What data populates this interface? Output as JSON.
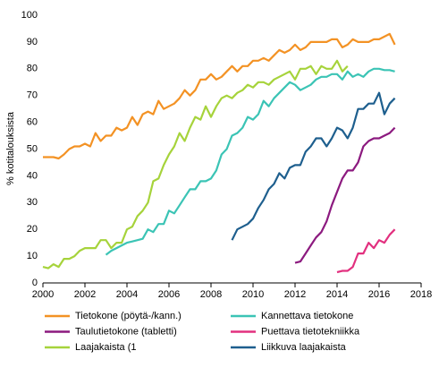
{
  "chart_data": {
    "type": "line",
    "x": [
      2000,
      2000.25,
      2000.5,
      2000.75,
      2001,
      2001.25,
      2001.5,
      2001.75,
      2002,
      2002.25,
      2002.5,
      2002.75,
      2003,
      2003.25,
      2003.5,
      2003.75,
      2004,
      2004.25,
      2004.5,
      2004.75,
      2005,
      2005.25,
      2005.5,
      2005.75,
      2006,
      2006.25,
      2006.5,
      2006.75,
      2007,
      2007.25,
      2007.5,
      2007.75,
      2008,
      2008.25,
      2008.5,
      2008.75,
      2009,
      2009.25,
      2009.5,
      2009.75,
      2010,
      2010.25,
      2010.5,
      2010.75,
      2011,
      2011.25,
      2011.5,
      2011.75,
      2012,
      2012.25,
      2012.5,
      2012.75,
      2013,
      2013.25,
      2013.5,
      2013.75,
      2014,
      2014.25,
      2014.5,
      2014.75,
      2015,
      2015.25,
      2015.5,
      2015.75,
      2016,
      2016.25,
      2016.5,
      2016.75
    ],
    "series": [
      {
        "name": "Tietokone (pöytä-/kann.)",
        "color": "#f39224",
        "values": [
          47,
          47,
          47,
          46.5,
          48,
          50,
          51,
          51,
          52,
          51,
          56,
          53,
          55,
          55,
          58,
          57,
          58,
          62,
          59,
          63,
          64,
          63,
          68,
          65,
          66,
          67,
          69,
          72,
          70,
          72,
          76,
          76,
          78,
          76,
          77,
          79,
          81,
          79,
          81,
          81,
          83,
          83,
          84,
          83,
          85,
          87,
          86,
          87,
          89,
          87,
          88,
          90,
          90,
          90,
          90,
          91,
          91,
          88,
          89,
          91,
          90,
          90,
          90,
          91,
          91,
          92,
          93,
          89
        ]
      },
      {
        "name": "Kannettava tietokone",
        "color": "#3bc4b5",
        "values": [
          null,
          null,
          null,
          null,
          null,
          null,
          null,
          null,
          null,
          null,
          null,
          null,
          10.5,
          12,
          13,
          14,
          15,
          15.5,
          16,
          16.5,
          20,
          19,
          22,
          22,
          27,
          26,
          29,
          32,
          35,
          35,
          38,
          38,
          39,
          42,
          48,
          50,
          55,
          56,
          58,
          62,
          61,
          63,
          68,
          66,
          69,
          71,
          73,
          75,
          74,
          72,
          73,
          74,
          76,
          77,
          77,
          78,
          78,
          76,
          79,
          77,
          78,
          77,
          79,
          80,
          80,
          79.5,
          79.5,
          79
        ]
      },
      {
        "name": "Taulutietokone (tabletti)",
        "color": "#8c1a7f",
        "values": [
          null,
          null,
          null,
          null,
          null,
          null,
          null,
          null,
          null,
          null,
          null,
          null,
          null,
          null,
          null,
          null,
          null,
          null,
          null,
          null,
          null,
          null,
          null,
          null,
          null,
          null,
          null,
          null,
          null,
          null,
          null,
          null,
          null,
          null,
          null,
          null,
          null,
          null,
          null,
          null,
          null,
          null,
          null,
          null,
          null,
          null,
          null,
          null,
          7.5,
          8,
          11,
          14,
          17,
          19,
          23,
          29,
          34,
          39,
          42,
          42,
          45,
          51,
          53,
          54,
          54,
          55,
          56,
          58
        ]
      },
      {
        "name": "Puettava tietotekniikka",
        "color": "#e2307f",
        "values": [
          null,
          null,
          null,
          null,
          null,
          null,
          null,
          null,
          null,
          null,
          null,
          null,
          null,
          null,
          null,
          null,
          null,
          null,
          null,
          null,
          null,
          null,
          null,
          null,
          null,
          null,
          null,
          null,
          null,
          null,
          null,
          null,
          null,
          null,
          null,
          null,
          null,
          null,
          null,
          null,
          null,
          null,
          null,
          null,
          null,
          null,
          null,
          null,
          null,
          null,
          null,
          null,
          null,
          null,
          null,
          null,
          4,
          4.5,
          4.5,
          6,
          11,
          11,
          15,
          13,
          16,
          15,
          18,
          20
        ]
      },
      {
        "name": "Laajakaista (1",
        "color": "#a6d33b",
        "values": [
          6,
          5.5,
          7,
          6,
          9,
          9,
          10,
          12,
          13,
          13,
          13,
          16,
          16,
          13,
          15,
          15,
          20,
          21,
          25,
          27,
          30,
          38,
          39,
          44,
          48,
          51,
          56,
          53,
          58,
          62,
          61,
          66,
          62,
          66,
          69,
          70,
          69,
          71,
          72,
          74,
          73,
          75,
          75,
          74,
          76,
          77,
          78,
          79,
          76,
          80,
          80,
          81,
          78,
          81,
          80,
          80,
          83,
          79,
          81,
          null,
          null,
          null,
          null,
          null,
          null,
          null,
          null,
          null
        ]
      },
      {
        "name": "Liikkuva laajakaista",
        "color": "#1e5f8e",
        "values": [
          null,
          null,
          null,
          null,
          null,
          null,
          null,
          null,
          null,
          null,
          null,
          null,
          null,
          null,
          null,
          null,
          null,
          null,
          null,
          null,
          null,
          null,
          null,
          null,
          null,
          null,
          null,
          null,
          null,
          null,
          null,
          null,
          null,
          null,
          null,
          null,
          16,
          20,
          21,
          22,
          24,
          28,
          31,
          35,
          37,
          41,
          39,
          43,
          44,
          44,
          49,
          51,
          54,
          54,
          51,
          54,
          58,
          57,
          54,
          58,
          65,
          65,
          67,
          67,
          71,
          63,
          67,
          69
        ]
      }
    ],
    "ylabel": "% kotitalouksista",
    "xlim": [
      2000,
      2018
    ],
    "xticks": [
      2000,
      2002,
      2004,
      2006,
      2008,
      2010,
      2012,
      2014,
      2016,
      2018
    ],
    "ylim": [
      0,
      100
    ],
    "yticks": [
      0,
      10,
      20,
      30,
      40,
      50,
      60,
      70,
      80,
      90,
      100
    ],
    "grid": false,
    "legend": "bottom"
  }
}
